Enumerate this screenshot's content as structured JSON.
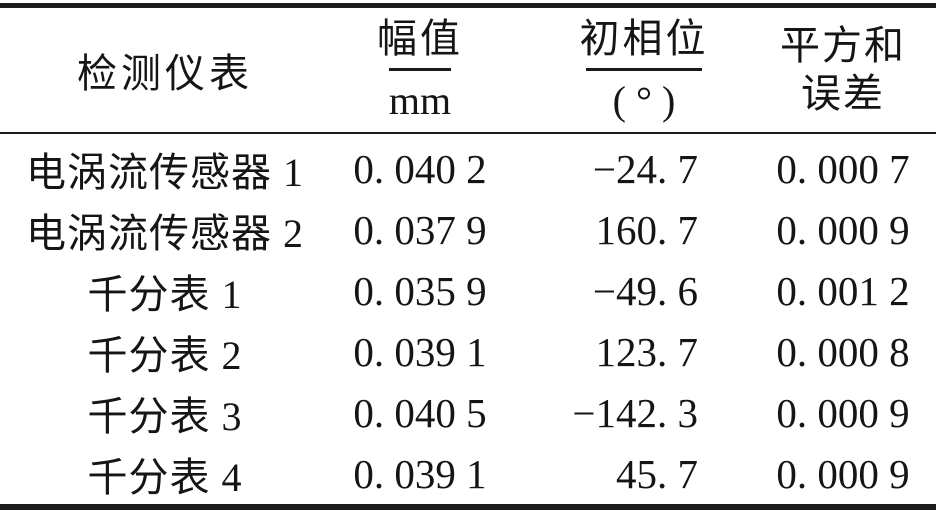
{
  "colors": {
    "background": "#ffffff",
    "text": "#151515",
    "rule": "#1c1c1c"
  },
  "table": {
    "header": {
      "instrument_label": "检测仪表",
      "amplitude": {
        "numerator": "幅值",
        "denominator": "mm"
      },
      "phase": {
        "numerator": "初相位",
        "denominator": "( ° )"
      },
      "sse": {
        "line1": "平方和",
        "line2": "误差"
      }
    },
    "rows": [
      {
        "instrument": "电涡流传感器 1",
        "amplitude": "0. 040 2",
        "phase": "−24. 7",
        "sse": "0. 000 7"
      },
      {
        "instrument": "电涡流传感器 2",
        "amplitude": "0. 037 9",
        "phase": "160. 7",
        "sse": "0. 000 9"
      },
      {
        "instrument": "千分表 1",
        "amplitude": "0. 035 9",
        "phase": "−49. 6",
        "sse": "0. 001 2"
      },
      {
        "instrument": "千分表 2",
        "amplitude": "0. 039 1",
        "phase": "123. 7",
        "sse": "0. 000 8"
      },
      {
        "instrument": "千分表 3",
        "amplitude": "0. 040 5",
        "phase": "−142. 3",
        "sse": "0. 000 9"
      },
      {
        "instrument": "千分表 4",
        "amplitude": "0. 039 1",
        "phase": "45. 7",
        "sse": "0. 000 9"
      }
    ]
  }
}
